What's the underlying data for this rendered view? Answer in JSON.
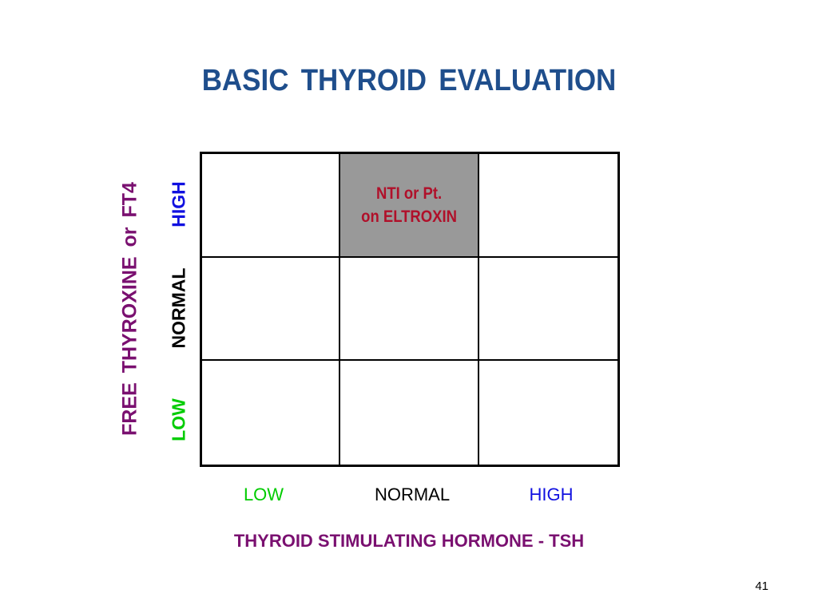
{
  "slide": {
    "title": "BASIC  THYROID  EVALUATION",
    "page_number": "41"
  },
  "colors": {
    "title": "#1f4e8c",
    "axis_title": "#7a1070",
    "low": "#00cc00",
    "normal": "#000000",
    "high": "#1010e0",
    "highlight_text": "#b0102a",
    "highlight_fill": "#999999"
  },
  "y_axis": {
    "title": "FREE  THYROXINE  or  FT4",
    "levels": {
      "high": "HIGH",
      "normal": "NORMAL",
      "low": "LOW"
    }
  },
  "x_axis": {
    "title": "THYROID STIMULATING HORMONE - TSH",
    "levels": {
      "low": "LOW",
      "normal": "NORMAL",
      "high": "HIGH"
    }
  },
  "grid": {
    "rows": [
      {
        "ft4": "HIGH",
        "cells": [
          {
            "tsh": "LOW",
            "text": ""
          },
          {
            "tsh": "NORMAL",
            "text": "NTI or Pt.\non ELTROXIN",
            "shaded": true
          },
          {
            "tsh": "HIGH",
            "text": ""
          }
        ]
      },
      {
        "ft4": "NORMAL",
        "cells": [
          {
            "tsh": "LOW",
            "text": ""
          },
          {
            "tsh": "NORMAL",
            "text": ""
          },
          {
            "tsh": "HIGH",
            "text": ""
          }
        ]
      },
      {
        "ft4": "LOW",
        "cells": [
          {
            "tsh": "LOW",
            "text": ""
          },
          {
            "tsh": "NORMAL",
            "text": ""
          },
          {
            "tsh": "HIGH",
            "text": ""
          }
        ]
      }
    ]
  }
}
